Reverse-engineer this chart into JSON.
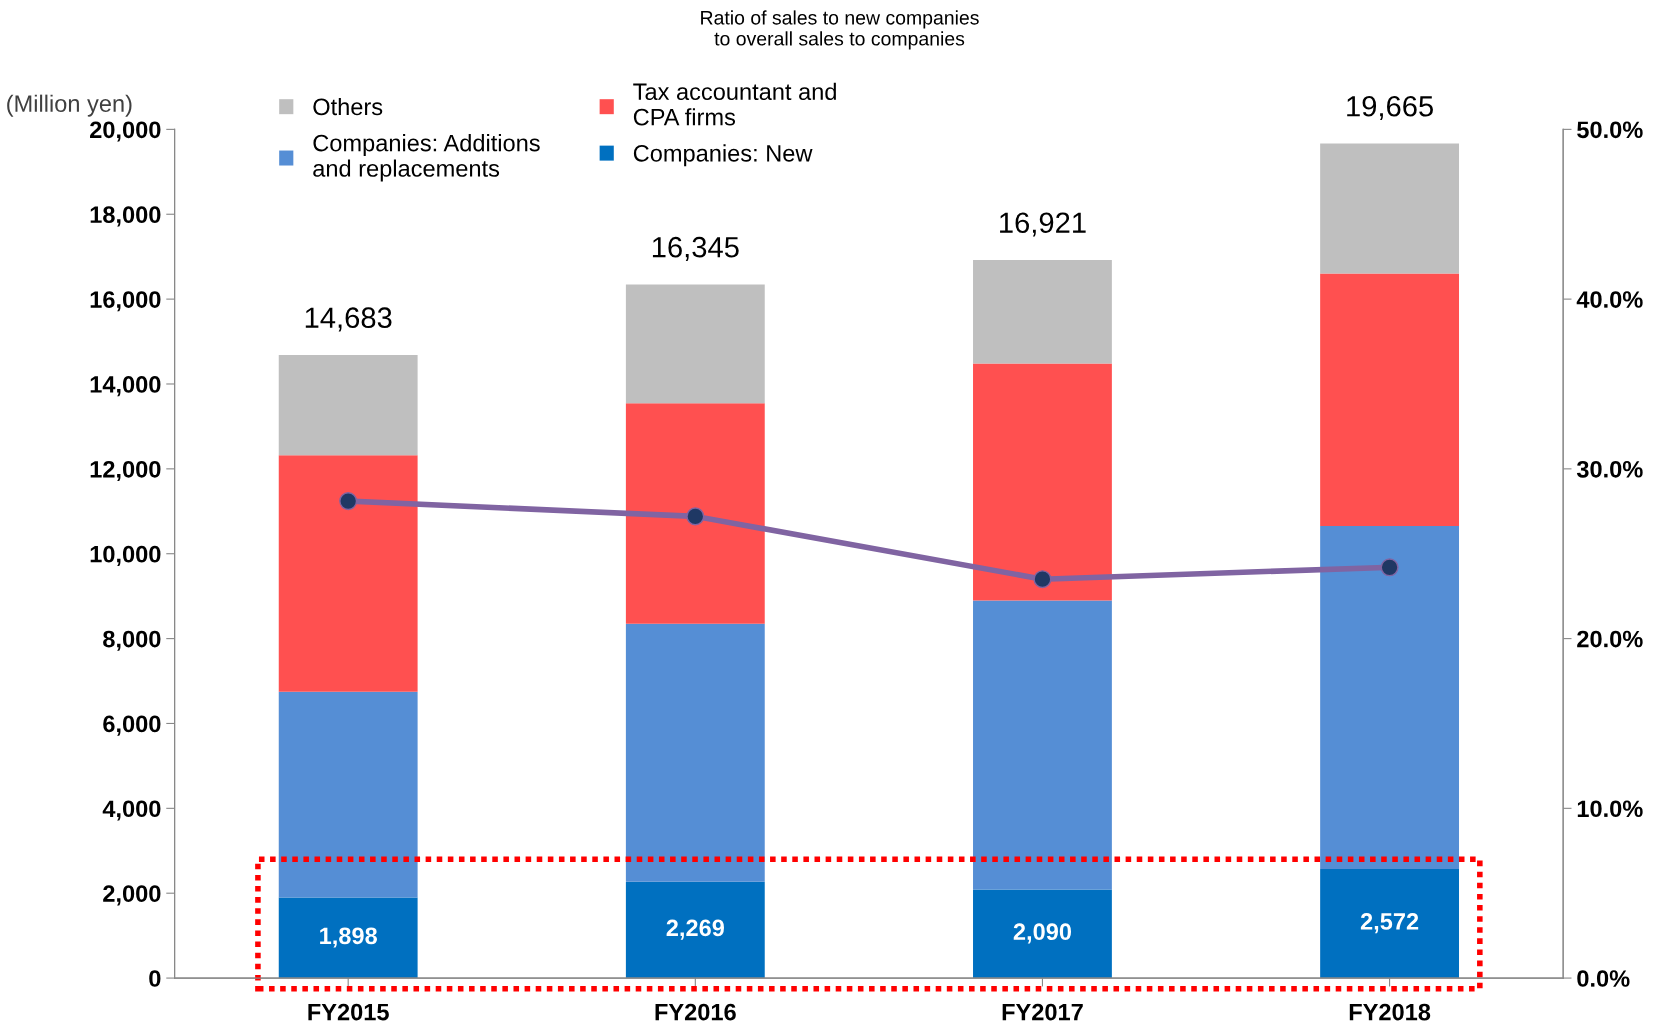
{
  "chart_data": {
    "type": "bar",
    "stacked": true,
    "ylabel": "(Million yen)",
    "categories": [
      "FY2015",
      "FY2016",
      "FY2017",
      "FY2018"
    ],
    "series": [
      {
        "name": "Companies: New",
        "color": "#0070c0",
        "values": [
          1898,
          2269,
          2090,
          2572
        ],
        "value_labels": [
          "1,898",
          "2,269",
          "2,090",
          "2,572"
        ]
      },
      {
        "name": "Companies: Additions\nand replacements",
        "color": "#558ed5",
        "values": [
          4850,
          6080,
          6810,
          8080
        ]
      },
      {
        "name": "Tax accountant and\nCPA firms",
        "color": "#ff5050",
        "values": [
          5575,
          5196,
          5581,
          5953
        ]
      },
      {
        "name": "Others",
        "color": "#bfbfbf",
        "values": [
          2360,
          2800,
          2440,
          3060
        ]
      },
      {
        "type": "line",
        "axis": "y2",
        "color": "#8064a2",
        "marker": "circle",
        "values": [
          28.1,
          27.2,
          23.5,
          24.2
        ]
      }
    ],
    "totals": [
      "14,683",
      "16,345",
      "16,921",
      "19,665"
    ],
    "ylim": [
      0,
      20000
    ],
    "yticks": [
      {
        "value": 0,
        "label": "0"
      },
      {
        "value": 2000,
        "label": "2,000"
      },
      {
        "value": 4000,
        "label": "4,000"
      },
      {
        "value": 6000,
        "label": "6,000"
      },
      {
        "value": 8000,
        "label": "8,000"
      },
      {
        "value": 10000,
        "label": "10,000"
      },
      {
        "value": 12000,
        "label": "12,000"
      },
      {
        "value": 14000,
        "label": "14,000"
      },
      {
        "value": 16000,
        "label": "16,000"
      },
      {
        "value": 18000,
        "label": "18,000"
      },
      {
        "value": 20000,
        "label": "20,000"
      }
    ],
    "y2lim": [
      0,
      50
    ],
    "y2ticks": [
      {
        "value": 0,
        "label": "0.0%"
      },
      {
        "value": 10,
        "label": "10.0%"
      },
      {
        "value": 20,
        "label": "20.0%"
      },
      {
        "value": 30,
        "label": "30.0%"
      },
      {
        "value": 40,
        "label": "40.0%"
      },
      {
        "value": 50,
        "label": "50.0%"
      }
    ],
    "annotations": [
      "Ratio of sales to new companies\nto overall sales to companies"
    ],
    "legend": "top left",
    "grid": false
  }
}
